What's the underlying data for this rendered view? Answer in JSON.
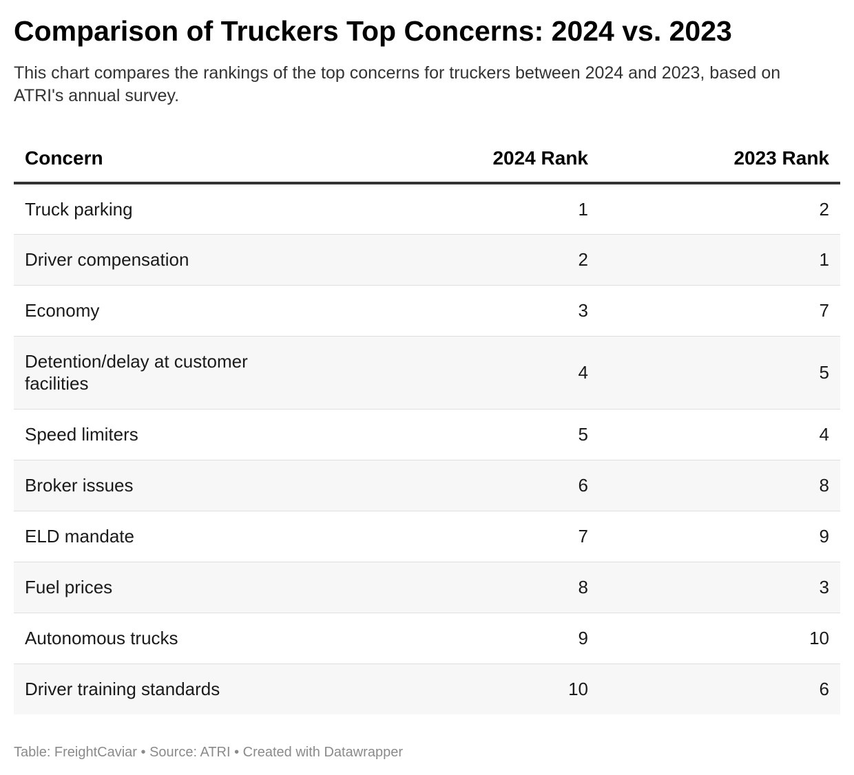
{
  "title": "Comparison of Truckers Top Concerns: 2024 vs. 2023",
  "subtitle": "This chart compares the rankings of the top concerns for truckers between 2024 and 2023, based on ATRI's annual survey.",
  "footer": "Table: FreightCaviar • Source: ATRI • Created with Datawrapper",
  "chart_data": {
    "type": "table",
    "title": "Comparison of Truckers Top Concerns: 2024 vs. 2023",
    "columns": [
      "Concern",
      "2024 Rank",
      "2023 Rank"
    ],
    "rows": [
      {
        "concern": "Truck parking",
        "rank_2024": "1",
        "rank_2023": "2"
      },
      {
        "concern": "Driver compensation",
        "rank_2024": "2",
        "rank_2023": "1"
      },
      {
        "concern": "Economy",
        "rank_2024": "3",
        "rank_2023": "7"
      },
      {
        "concern": "Detention/delay at customer facilities",
        "rank_2024": "4",
        "rank_2023": "5"
      },
      {
        "concern": "Speed limiters",
        "rank_2024": "5",
        "rank_2023": "4"
      },
      {
        "concern": "Broker issues",
        "rank_2024": "6",
        "rank_2023": "8"
      },
      {
        "concern": "ELD mandate",
        "rank_2024": "7",
        "rank_2023": "9"
      },
      {
        "concern": "Fuel prices",
        "rank_2024": "8",
        "rank_2023": "3"
      },
      {
        "concern": "Autonomous trucks",
        "rank_2024": "9",
        "rank_2023": "10"
      },
      {
        "concern": "Driver training standards",
        "rank_2024": "10",
        "rank_2023": "6"
      }
    ]
  }
}
